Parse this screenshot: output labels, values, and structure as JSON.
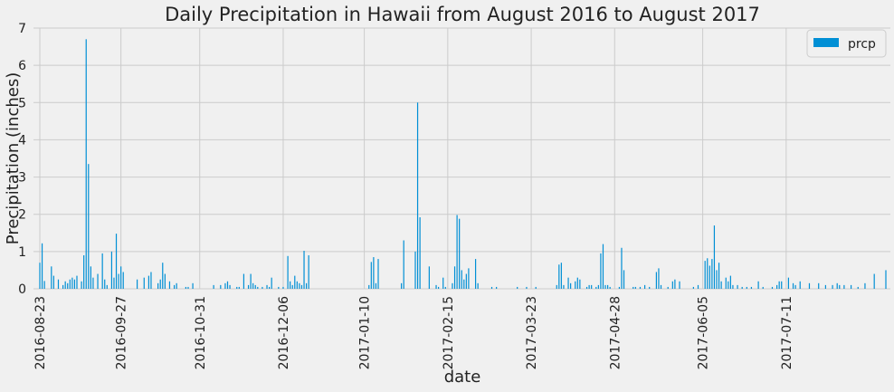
{
  "chart_data": {
    "type": "bar",
    "title": "Daily Precipitation in Hawaii from August 2016 to August 2017",
    "xlabel": "date",
    "ylabel": "Precipitation (inches)",
    "ylim": [
      0,
      7
    ],
    "yticks": [
      0,
      1,
      2,
      3,
      4,
      5,
      6,
      7
    ],
    "grid": true,
    "legend": "top-right",
    "bar_color": "#008fd5",
    "background_color": "#f0f0f0",
    "grid_color": "#cbcbcb",
    "x_start": "2016-08-23",
    "x_end": "2017-08-23",
    "xtick_labels": [
      "2016-08-23",
      "2016-09-27",
      "2016-10-31",
      "2016-12-06",
      "2017-01-10",
      "2017-02-15",
      "2017-03-23",
      "2017-04-28",
      "2017-06-05",
      "2017-07-11"
    ],
    "series": [
      {
        "name": "prcp",
        "points": [
          [
            "2016-08-23",
            0.7
          ],
          [
            "2016-08-24",
            1.22
          ],
          [
            "2016-08-25",
            0.21
          ],
          [
            "2016-08-28",
            0.6
          ],
          [
            "2016-08-29",
            0.35
          ],
          [
            "2016-08-31",
            0.25
          ],
          [
            "2016-09-02",
            0.1
          ],
          [
            "2016-09-03",
            0.2
          ],
          [
            "2016-09-04",
            0.15
          ],
          [
            "2016-09-05",
            0.25
          ],
          [
            "2016-09-06",
            0.3
          ],
          [
            "2016-09-07",
            0.25
          ],
          [
            "2016-09-08",
            0.35
          ],
          [
            "2016-09-10",
            0.2
          ],
          [
            "2016-09-11",
            0.9
          ],
          [
            "2016-09-12",
            6.7
          ],
          [
            "2016-09-13",
            3.35
          ],
          [
            "2016-09-14",
            0.6
          ],
          [
            "2016-09-15",
            0.3
          ],
          [
            "2016-09-17",
            0.4
          ],
          [
            "2016-09-19",
            0.95
          ],
          [
            "2016-09-20",
            0.25
          ],
          [
            "2016-09-21",
            0.1
          ],
          [
            "2016-09-23",
            1.0
          ],
          [
            "2016-09-24",
            0.3
          ],
          [
            "2016-09-25",
            1.48
          ],
          [
            "2016-09-26",
            0.4
          ],
          [
            "2016-09-27",
            0.6
          ],
          [
            "2016-09-28",
            0.45
          ],
          [
            "2016-10-04",
            0.25
          ],
          [
            "2016-10-07",
            0.3
          ],
          [
            "2016-10-09",
            0.35
          ],
          [
            "2016-10-10",
            0.45
          ],
          [
            "2016-10-13",
            0.15
          ],
          [
            "2016-10-14",
            0.25
          ],
          [
            "2016-10-15",
            0.7
          ],
          [
            "2016-10-16",
            0.4
          ],
          [
            "2016-10-18",
            0.2
          ],
          [
            "2016-10-20",
            0.1
          ],
          [
            "2016-10-21",
            0.15
          ],
          [
            "2016-10-25",
            0.05
          ],
          [
            "2016-10-26",
            0.05
          ],
          [
            "2016-10-28",
            0.15
          ],
          [
            "2016-11-06",
            0.1
          ],
          [
            "2016-11-09",
            0.1
          ],
          [
            "2016-11-11",
            0.15
          ],
          [
            "2016-11-12",
            0.2
          ],
          [
            "2016-11-13",
            0.1
          ],
          [
            "2016-11-16",
            0.05
          ],
          [
            "2016-11-17",
            0.05
          ],
          [
            "2016-11-19",
            0.4
          ],
          [
            "2016-11-21",
            0.1
          ],
          [
            "2016-11-22",
            0.4
          ],
          [
            "2016-11-23",
            0.15
          ],
          [
            "2016-11-24",
            0.1
          ],
          [
            "2016-11-25",
            0.05
          ],
          [
            "2016-11-27",
            0.05
          ],
          [
            "2016-11-29",
            0.1
          ],
          [
            "2016-11-30",
            0.05
          ],
          [
            "2016-12-01",
            0.3
          ],
          [
            "2016-12-04",
            0.05
          ],
          [
            "2016-12-06",
            0.05
          ],
          [
            "2016-12-08",
            0.88
          ],
          [
            "2016-12-09",
            0.2
          ],
          [
            "2016-12-10",
            0.1
          ],
          [
            "2016-12-11",
            0.35
          ],
          [
            "2016-12-12",
            0.2
          ],
          [
            "2016-12-13",
            0.15
          ],
          [
            "2016-12-14",
            0.1
          ],
          [
            "2016-12-15",
            1.02
          ],
          [
            "2016-12-16",
            0.15
          ],
          [
            "2016-12-17",
            0.9
          ],
          [
            "2017-01-12",
            0.1
          ],
          [
            "2017-01-13",
            0.72
          ],
          [
            "2017-01-14",
            0.85
          ],
          [
            "2017-01-15",
            0.15
          ],
          [
            "2017-01-16",
            0.8
          ],
          [
            "2017-01-26",
            0.15
          ],
          [
            "2017-01-27",
            1.3
          ],
          [
            "2017-02-01",
            1.0
          ],
          [
            "2017-02-02",
            5.0
          ],
          [
            "2017-02-03",
            1.92
          ],
          [
            "2017-02-07",
            0.6
          ],
          [
            "2017-02-10",
            0.1
          ],
          [
            "2017-02-11",
            0.05
          ],
          [
            "2017-02-13",
            0.3
          ],
          [
            "2017-02-14",
            0.05
          ],
          [
            "2017-02-17",
            0.15
          ],
          [
            "2017-02-18",
            0.6
          ],
          [
            "2017-02-19",
            1.98
          ],
          [
            "2017-02-20",
            1.88
          ],
          [
            "2017-02-21",
            0.5
          ],
          [
            "2017-02-22",
            0.25
          ],
          [
            "2017-02-23",
            0.4
          ],
          [
            "2017-02-24",
            0.55
          ],
          [
            "2017-02-27",
            0.8
          ],
          [
            "2017-02-28",
            0.15
          ],
          [
            "2017-03-06",
            0.05
          ],
          [
            "2017-03-08",
            0.05
          ],
          [
            "2017-03-17",
            0.05
          ],
          [
            "2017-03-21",
            0.05
          ],
          [
            "2017-03-25",
            0.05
          ],
          [
            "2017-04-03",
            0.1
          ],
          [
            "2017-04-04",
            0.65
          ],
          [
            "2017-04-05",
            0.7
          ],
          [
            "2017-04-06",
            0.1
          ],
          [
            "2017-04-08",
            0.3
          ],
          [
            "2017-04-09",
            0.15
          ],
          [
            "2017-04-11",
            0.2
          ],
          [
            "2017-04-12",
            0.3
          ],
          [
            "2017-04-13",
            0.25
          ],
          [
            "2017-04-16",
            0.05
          ],
          [
            "2017-04-17",
            0.1
          ],
          [
            "2017-04-18",
            0.1
          ],
          [
            "2017-04-20",
            0.05
          ],
          [
            "2017-04-21",
            0.1
          ],
          [
            "2017-04-22",
            0.95
          ],
          [
            "2017-04-23",
            1.2
          ],
          [
            "2017-04-24",
            0.1
          ],
          [
            "2017-04-25",
            0.1
          ],
          [
            "2017-04-26",
            0.05
          ],
          [
            "2017-04-30",
            0.05
          ],
          [
            "2017-05-01",
            1.1
          ],
          [
            "2017-05-02",
            0.5
          ],
          [
            "2017-05-06",
            0.05
          ],
          [
            "2017-05-07",
            0.05
          ],
          [
            "2017-05-09",
            0.05
          ],
          [
            "2017-05-11",
            0.1
          ],
          [
            "2017-05-13",
            0.05
          ],
          [
            "2017-05-16",
            0.45
          ],
          [
            "2017-05-17",
            0.55
          ],
          [
            "2017-05-18",
            0.1
          ],
          [
            "2017-05-21",
            0.05
          ],
          [
            "2017-05-23",
            0.2
          ],
          [
            "2017-05-24",
            0.25
          ],
          [
            "2017-05-26",
            0.2
          ],
          [
            "2017-06-01",
            0.05
          ],
          [
            "2017-06-03",
            0.1
          ],
          [
            "2017-06-06",
            0.75
          ],
          [
            "2017-06-07",
            0.82
          ],
          [
            "2017-06-08",
            0.62
          ],
          [
            "2017-06-09",
            0.8
          ],
          [
            "2017-06-10",
            1.7
          ],
          [
            "2017-06-11",
            0.5
          ],
          [
            "2017-06-12",
            0.7
          ],
          [
            "2017-06-13",
            0.2
          ],
          [
            "2017-06-15",
            0.3
          ],
          [
            "2017-06-16",
            0.2
          ],
          [
            "2017-06-17",
            0.35
          ],
          [
            "2017-06-18",
            0.1
          ],
          [
            "2017-06-20",
            0.1
          ],
          [
            "2017-06-22",
            0.05
          ],
          [
            "2017-06-24",
            0.05
          ],
          [
            "2017-06-26",
            0.05
          ],
          [
            "2017-06-29",
            0.2
          ],
          [
            "2017-07-01",
            0.05
          ],
          [
            "2017-07-05",
            0.05
          ],
          [
            "2017-07-07",
            0.1
          ],
          [
            "2017-07-08",
            0.2
          ],
          [
            "2017-07-09",
            0.2
          ],
          [
            "2017-07-12",
            0.3
          ],
          [
            "2017-07-14",
            0.15
          ],
          [
            "2017-07-15",
            0.1
          ],
          [
            "2017-07-17",
            0.2
          ],
          [
            "2017-07-21",
            0.15
          ],
          [
            "2017-07-25",
            0.15
          ],
          [
            "2017-07-28",
            0.1
          ],
          [
            "2017-07-31",
            0.1
          ],
          [
            "2017-08-02",
            0.15
          ],
          [
            "2017-08-03",
            0.1
          ],
          [
            "2017-08-05",
            0.1
          ],
          [
            "2017-08-08",
            0.1
          ],
          [
            "2017-08-11",
            0.05
          ],
          [
            "2017-08-14",
            0.15
          ],
          [
            "2017-08-18",
            0.4
          ],
          [
            "2017-08-23",
            0.5
          ]
        ]
      }
    ]
  }
}
